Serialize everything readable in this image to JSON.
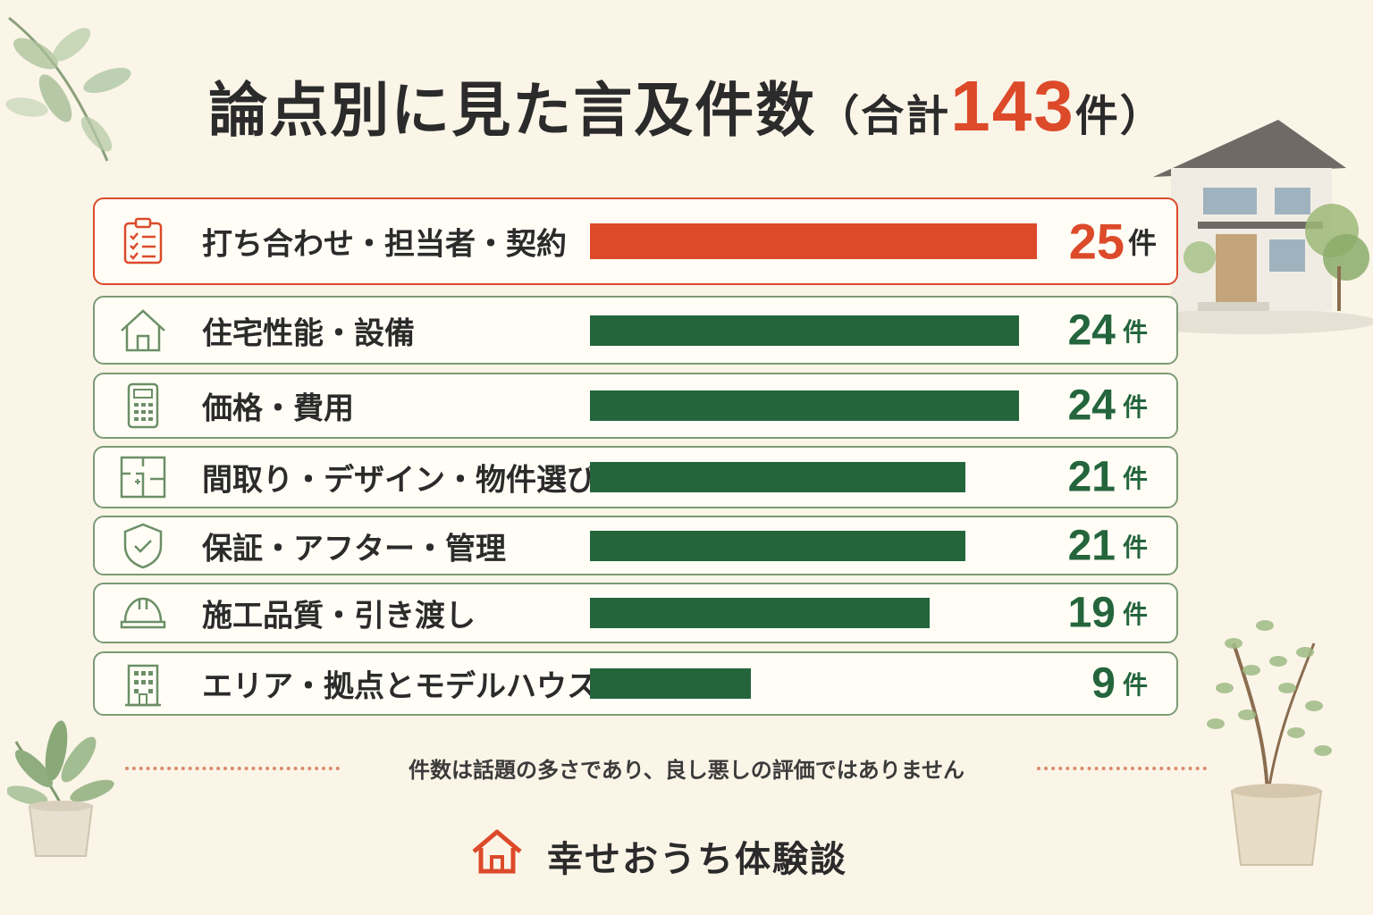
{
  "title": {
    "main": "論点別に見た言及件数",
    "paren_open": "（",
    "sum_prefix": "合計",
    "total": "143",
    "unit": "件",
    "paren_close": "）"
  },
  "chart_data": {
    "type": "bar",
    "orientation": "horizontal",
    "categories": [
      "打ち合わせ・担当者・契約",
      "住宅性能・設備",
      "価格・費用",
      "間取り・デザイン・物件選び",
      "保証・アフター・管理",
      "施工品質・引き渡し",
      "エリア・拠点とモデルハウス"
    ],
    "values": [
      25,
      24,
      24,
      21,
      21,
      19,
      9
    ],
    "value_unit": "件",
    "highlight_index": 0,
    "colors": {
      "highlight": "#dc4a2a",
      "default": "#24653c"
    },
    "icons": [
      "clipboard-checklist-icon",
      "house-icon",
      "calculator-icon",
      "floor-plan-icon",
      "shield-check-icon",
      "hard-hat-icon",
      "building-icon"
    ],
    "grid": false,
    "legend": "none"
  },
  "note": "件数は話題の多さであり、良し悪しの評価ではありません",
  "brand": {
    "name": "幸せおうち体験談",
    "icon": "house-icon",
    "color": "#dc4a2a"
  },
  "decorations": [
    "leaf-branch-icon",
    "house-illustration",
    "potted-plant-icon",
    "potted-tree-icon"
  ]
}
